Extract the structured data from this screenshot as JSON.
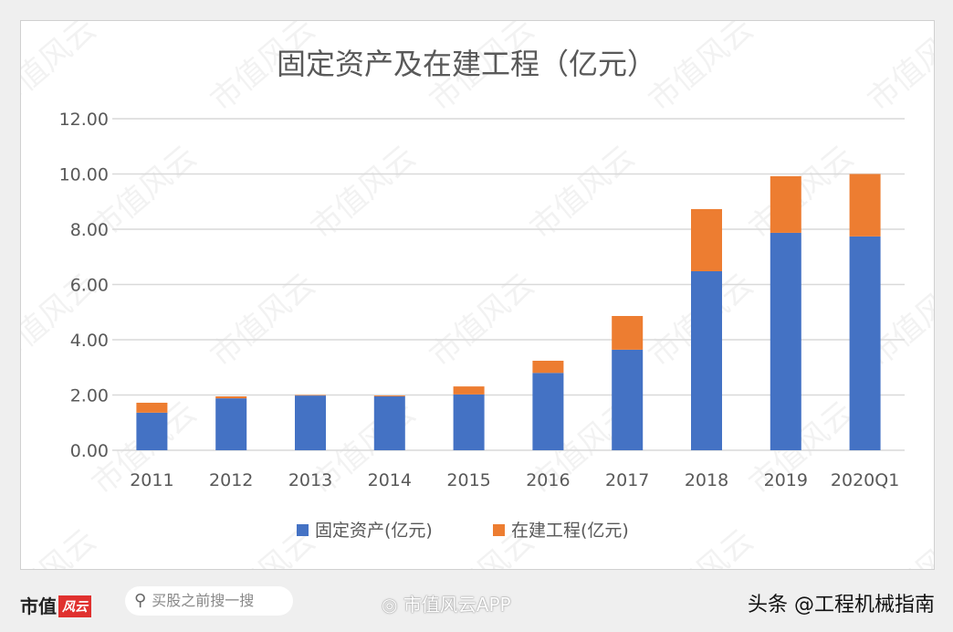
{
  "chart_data": {
    "type": "bar",
    "stacked": true,
    "title": "固定资产及在建工程（亿元）",
    "categories": [
      "2011",
      "2012",
      "2013",
      "2014",
      "2015",
      "2016",
      "2017",
      "2018",
      "2019",
      "2020Q1"
    ],
    "series": [
      {
        "name": "固定资产(亿元)",
        "color": "#4472c4",
        "values": [
          1.36,
          1.88,
          1.98,
          1.95,
          2.02,
          2.8,
          3.64,
          6.48,
          7.87,
          7.74
        ]
      },
      {
        "name": "在建工程(亿元)",
        "color": "#ed7d31",
        "values": [
          0.36,
          0.07,
          0.02,
          0.03,
          0.29,
          0.44,
          1.22,
          2.25,
          2.05,
          2.26
        ]
      }
    ],
    "ylim": [
      0,
      12
    ],
    "yticks": [
      "0.00",
      "2.00",
      "4.00",
      "6.00",
      "8.00",
      "10.00",
      "12.00"
    ],
    "grid": true,
    "legend": "bottom"
  },
  "watermark": "市值风云",
  "footer": {
    "logo_text": "市值",
    "logo_badge": "风云",
    "search_placeholder": "买股之前搜一搜",
    "weibo_text": "市值风云APP",
    "credit": "头条 @工程机械指南"
  }
}
